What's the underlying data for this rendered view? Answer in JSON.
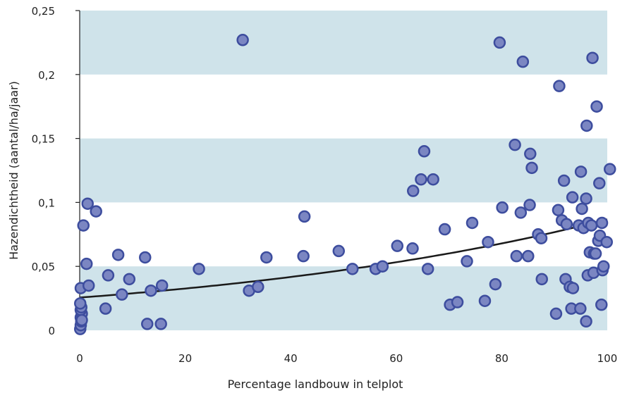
{
  "chart_data": {
    "type": "scatter",
    "title": "",
    "xlabel": "Percentage landbouw in telplot",
    "ylabel": "Hazendichtheid (aantal/ha/jaar)",
    "xlim": [
      0,
      100
    ],
    "ylim": [
      0,
      0.25
    ],
    "x_ticks": [
      "0",
      "20",
      "40",
      "60",
      "80",
      "100"
    ],
    "y_ticks": [
      "0",
      "0,05",
      "0,1",
      "0,15",
      "0,2",
      "0,25"
    ],
    "bands": [
      [
        0,
        0.05
      ],
      [
        0.1,
        0.15
      ],
      [
        0.2,
        0.25
      ]
    ],
    "colors": {
      "band": "#cfe3ea",
      "marker_fill": "#7b86c2",
      "marker_edge": "#3d4d9e",
      "trend": "#1a1a1a"
    },
    "points": [
      [
        0.1,
        0.001
      ],
      [
        0.2,
        0.004
      ],
      [
        0.3,
        0.007
      ],
      [
        0.2,
        0.01
      ],
      [
        0.4,
        0.013
      ],
      [
        0.2,
        0.016
      ],
      [
        0.3,
        0.018
      ],
      [
        0.1,
        0.021
      ],
      [
        0.4,
        0.008
      ],
      [
        0.2,
        0.033
      ],
      [
        0.7,
        0.082
      ],
      [
        1.3,
        0.052
      ],
      [
        1.7,
        0.035
      ],
      [
        1.5,
        0.099
      ],
      [
        3.1,
        0.093
      ],
      [
        4.9,
        0.017
      ],
      [
        5.4,
        0.043
      ],
      [
        7.3,
        0.059
      ],
      [
        8.0,
        0.028
      ],
      [
        9.4,
        0.04
      ],
      [
        12.4,
        0.057
      ],
      [
        12.8,
        0.005
      ],
      [
        13.5,
        0.031
      ],
      [
        15.4,
        0.005
      ],
      [
        15.6,
        0.035
      ],
      [
        22.6,
        0.048
      ],
      [
        30.9,
        0.227
      ],
      [
        32.1,
        0.031
      ],
      [
        33.8,
        0.034
      ],
      [
        35.4,
        0.057
      ],
      [
        42.4,
        0.058
      ],
      [
        42.6,
        0.089
      ],
      [
        49.1,
        0.062
      ],
      [
        51.7,
        0.048
      ],
      [
        56.1,
        0.048
      ],
      [
        57.4,
        0.05
      ],
      [
        60.2,
        0.066
      ],
      [
        63.1,
        0.064
      ],
      [
        63.2,
        0.109
      ],
      [
        64.7,
        0.118
      ],
      [
        65.3,
        0.14
      ],
      [
        66.0,
        0.048
      ],
      [
        67.0,
        0.118
      ],
      [
        69.2,
        0.079
      ],
      [
        70.2,
        0.02
      ],
      [
        71.6,
        0.022
      ],
      [
        73.4,
        0.054
      ],
      [
        74.4,
        0.084
      ],
      [
        76.8,
        0.023
      ],
      [
        77.4,
        0.069
      ],
      [
        78.8,
        0.036
      ],
      [
        79.6,
        0.225
      ],
      [
        80.1,
        0.096
      ],
      [
        82.5,
        0.145
      ],
      [
        82.8,
        0.058
      ],
      [
        83.6,
        0.092
      ],
      [
        84.0,
        0.21
      ],
      [
        85.0,
        0.058
      ],
      [
        85.3,
        0.098
      ],
      [
        85.4,
        0.138
      ],
      [
        85.7,
        0.127
      ],
      [
        86.9,
        0.075
      ],
      [
        87.5,
        0.072
      ],
      [
        87.6,
        0.04
      ],
      [
        90.3,
        0.013
      ],
      [
        90.7,
        0.094
      ],
      [
        90.9,
        0.191
      ],
      [
        91.4,
        0.086
      ],
      [
        91.8,
        0.117
      ],
      [
        92.1,
        0.04
      ],
      [
        92.3,
        0.083
      ],
      [
        92.9,
        0.034
      ],
      [
        93.2,
        0.017
      ],
      [
        93.4,
        0.104
      ],
      [
        93.5,
        0.033
      ],
      [
        94.6,
        0.082
      ],
      [
        94.9,
        0.017
      ],
      [
        95.0,
        0.124
      ],
      [
        95.2,
        0.095
      ],
      [
        95.5,
        0.08
      ],
      [
        96.0,
        0.103
      ],
      [
        96.0,
        0.007
      ],
      [
        96.1,
        0.16
      ],
      [
        96.3,
        0.043
      ],
      [
        96.4,
        0.084
      ],
      [
        96.7,
        0.061
      ],
      [
        97.0,
        0.082
      ],
      [
        97.2,
        0.213
      ],
      [
        97.4,
        0.045
      ],
      [
        97.5,
        0.06
      ],
      [
        97.8,
        0.06
      ],
      [
        98.0,
        0.175
      ],
      [
        98.3,
        0.07
      ],
      [
        98.5,
        0.115
      ],
      [
        98.6,
        0.074
      ],
      [
        98.9,
        0.02
      ],
      [
        99.0,
        0.084
      ],
      [
        99.1,
        0.047
      ],
      [
        99.3,
        0.05
      ],
      [
        99.9,
        0.069
      ],
      [
        100.5,
        0.126
      ]
    ],
    "trendline": {
      "type": "exponential",
      "a": 0.0256,
      "b": 0.0122
    }
  }
}
